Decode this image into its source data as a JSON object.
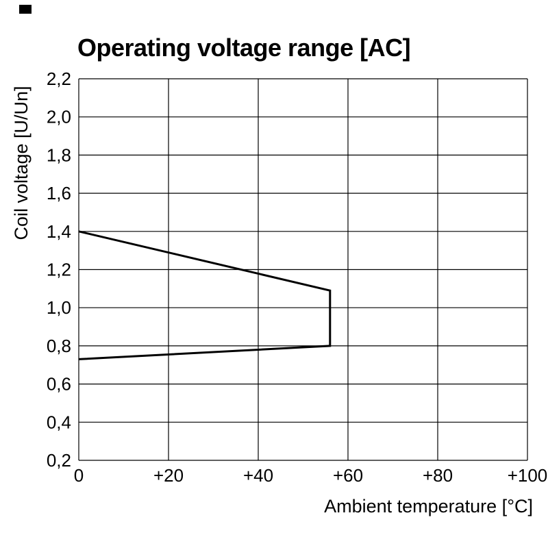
{
  "corner_marker": {
    "color": "#000000"
  },
  "chart_data": {
    "type": "line",
    "title": "Operating voltage range [AC]",
    "xlabel": "Ambient temperature [°C]",
    "ylabel": "Coil voltage [U/Un]",
    "xlim": [
      0,
      100
    ],
    "ylim": [
      0.2,
      2.2
    ],
    "grid": true,
    "legend": "none",
    "x_ticks": [
      {
        "value": 0,
        "label": "0"
      },
      {
        "value": 20,
        "label": "+20"
      },
      {
        "value": 40,
        "label": "+40"
      },
      {
        "value": 60,
        "label": "+60"
      },
      {
        "value": 80,
        "label": "+80"
      },
      {
        "value": 100,
        "label": "+100"
      }
    ],
    "y_ticks": [
      {
        "value": 2.2,
        "label": "2,2"
      },
      {
        "value": 2.0,
        "label": "2,0"
      },
      {
        "value": 1.8,
        "label": "1,8"
      },
      {
        "value": 1.6,
        "label": "1,6"
      },
      {
        "value": 1.4,
        "label": "1,4"
      },
      {
        "value": 1.2,
        "label": "1,2"
      },
      {
        "value": 1.0,
        "label": "1,0"
      },
      {
        "value": 0.8,
        "label": "0,8"
      },
      {
        "value": 0.6,
        "label": "0,6"
      },
      {
        "value": 0.4,
        "label": "0,4"
      },
      {
        "value": 0.2,
        "label": "0,2"
      }
    ],
    "series": [
      {
        "name": "operating-voltage-range-boundary",
        "color": "#000000",
        "stroke_width": 3,
        "points": [
          [
            0,
            1.4
          ],
          [
            56,
            1.09
          ],
          [
            56,
            0.8
          ],
          [
            0,
            0.73
          ]
        ]
      }
    ]
  }
}
